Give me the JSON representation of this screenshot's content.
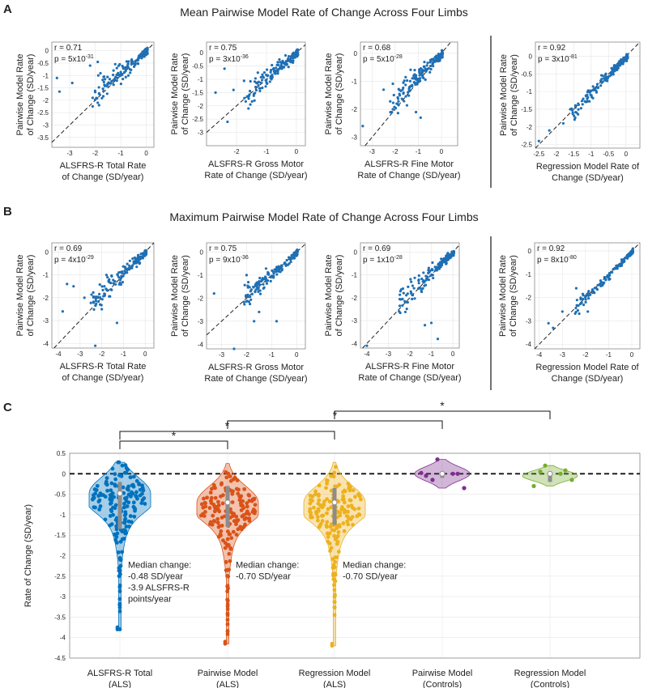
{
  "panel_labels": {
    "a": "A",
    "b": "B",
    "c": "C"
  },
  "titles": {
    "a": "Mean Pairwise Model Rate of Change Across Four Limbs",
    "b": "Maximum Pairwise Model Rate of Change Across Four Limbs"
  },
  "colors": {
    "scatter": "#1f6fb4",
    "als_total": "#0072BD",
    "pairwise_als": "#D95319",
    "regression_als": "#EDB120",
    "pairwise_controls": "#7E2F8E",
    "regression_controls": "#77AC30",
    "median": "#8c8c8c"
  },
  "chart_data": [
    {
      "id": "a1",
      "type": "scatter",
      "row": "a",
      "r": "r = 0.71",
      "p_base": "p = 5x10",
      "p_exp": "-31",
      "xlabel": [
        "ALSFRS-R Total Rate",
        "of Change (SD/year)"
      ],
      "ylabel": [
        "Pairwise Model Rate",
        "of Change (SD/year)"
      ],
      "xlim": [
        -3.7,
        0.3
      ],
      "ylim": [
        -3.9,
        0.35
      ],
      "xticks": [
        -3,
        -2,
        -1,
        0
      ],
      "yticks": [
        0,
        -0.5,
        -1,
        -1.5,
        -2,
        -2.5,
        -3,
        -3.5
      ],
      "slope": 0.85,
      "points_estimated": [
        [
          -3.4,
          -1.65
        ],
        [
          -3.5,
          -1.1
        ],
        [
          -2.9,
          -1.3
        ],
        [
          -2.1,
          -2.25
        ],
        [
          -2.1,
          -1.9
        ],
        [
          -1.9,
          -2.1
        ],
        [
          -2.2,
          -0.6
        ],
        [
          -1.9,
          -0.45
        ]
      ]
    },
    {
      "id": "a2",
      "type": "scatter",
      "row": "a",
      "r": "r = 0.75",
      "p_base": "p = 3x10",
      "p_exp": "-36",
      "xlabel": [
        "ALSFRS-R Gross Motor",
        "Rate of Change (SD/year)"
      ],
      "ylabel": [
        "Pairwise Model Rate",
        "of Change (SD/year)"
      ],
      "xlim": [
        -3.0,
        0.3
      ],
      "ylim": [
        -3.5,
        0.4
      ],
      "xticks": [
        -2,
        -1,
        0
      ],
      "yticks": [
        0,
        -0.5,
        -1,
        -1.5,
        -2,
        -2.5,
        -3
      ],
      "slope": 0.9,
      "points_estimated": [
        [
          -2.7,
          -1.5
        ],
        [
          -2.4,
          -0.6
        ],
        [
          -2.3,
          -2.6
        ],
        [
          -2.1,
          -1.4
        ],
        [
          -1.6,
          -2.1
        ],
        [
          -1.4,
          -1.8
        ]
      ]
    },
    {
      "id": "a3",
      "type": "scatter",
      "row": "a",
      "r": "r = 0.68",
      "p_base": "p = 5x10",
      "p_exp": "-28",
      "xlabel": [
        "ALSFRS-R Fine Motor",
        "Rate of Change (SD/year)"
      ],
      "ylabel": [
        "Pairwise Model Rate",
        "of Change (SD/year)"
      ],
      "xlim": [
        -3.5,
        0.7
      ],
      "ylim": [
        -3.3,
        0.4
      ],
      "xticks": [
        -3,
        -2,
        -1,
        0
      ],
      "yticks": [
        0,
        -1,
        -2,
        -3
      ],
      "slope": 0.8,
      "points_estimated": [
        [
          -3.4,
          -2.6
        ],
        [
          -2.5,
          -1.3
        ],
        [
          -2.1,
          -2.0
        ],
        [
          -1.8,
          -1.5
        ],
        [
          -1.1,
          -2.1
        ],
        [
          -0.9,
          -2.3
        ]
      ]
    },
    {
      "id": "a4",
      "type": "scatter",
      "row": "a",
      "r": "r = 0.92",
      "p_base": "p = 3x10",
      "p_exp": "-81",
      "xlabel": [
        "Regression Model Rate of",
        "Change (SD/year)"
      ],
      "ylabel": [
        "Pairwise Model Rate",
        "of Change (SD/year)"
      ],
      "xlim": [
        -2.6,
        0.4
      ],
      "ylim": [
        -2.6,
        0.4
      ],
      "xticks": [
        -2.5,
        -2,
        -1.5,
        -1,
        -0.5,
        0
      ],
      "yticks": [
        0,
        -0.5,
        -1,
        -1.5,
        -2,
        -2.5
      ],
      "slope": 1.0,
      "points_estimated": [
        [
          -2.5,
          -2.4
        ],
        [
          -2.2,
          -2.1
        ],
        [
          -1.8,
          -1.9
        ],
        [
          -1.6,
          -1.5
        ],
        [
          -1.45,
          -1.45
        ]
      ]
    },
    {
      "id": "b1",
      "type": "scatter",
      "row": "b",
      "r": "r = 0.69",
      "p_base": "p = 4x10",
      "p_exp": "-29",
      "xlabel": [
        "ALSFRS-R Total Rate",
        "of Change (SD/year)"
      ],
      "ylabel": [
        "Pairwise Model Rate",
        "of Change (SD/year)"
      ],
      "xlim": [
        -4.3,
        0.4
      ],
      "ylim": [
        -4.2,
        0.4
      ],
      "xticks": [
        -4,
        -3,
        -2,
        -1,
        0
      ],
      "yticks": [
        0,
        -1,
        -2,
        -3,
        -4
      ],
      "slope": 0.85,
      "points_estimated": [
        [
          -3.8,
          -2.6
        ],
        [
          -3.3,
          -1.5
        ],
        [
          -2.8,
          -2.0
        ],
        [
          -2.3,
          -4.1
        ],
        [
          -2.0,
          -2.5
        ],
        [
          -1.3,
          -3.1
        ],
        [
          -3.6,
          -1.4
        ]
      ]
    },
    {
      "id": "b2",
      "type": "scatter",
      "row": "b",
      "r": "r = 0.75",
      "p_base": "p = 9x10",
      "p_exp": "-36",
      "xlabel": [
        "ALSFRS-R Gross Motor",
        "Rate of Change (SD/year)"
      ],
      "ylabel": [
        "Pairwise Model Rate",
        "of Change (SD/year)"
      ],
      "xlim": [
        -3.6,
        0.35
      ],
      "ylim": [
        -4.2,
        0.4
      ],
      "xticks": [
        -3,
        -2,
        -1,
        0
      ],
      "yticks": [
        0,
        -1,
        -2,
        -3,
        -4
      ],
      "slope": 0.95,
      "points_estimated": [
        [
          -3.3,
          -1.8
        ],
        [
          -2.5,
          -4.2
        ],
        [
          -2.0,
          -1.0
        ],
        [
          -1.7,
          -3.0
        ],
        [
          -1.5,
          -2.6
        ],
        [
          -0.8,
          -3.0
        ]
      ]
    },
    {
      "id": "b3",
      "type": "scatter",
      "row": "b",
      "r": "r = 0.69",
      "p_base": "p = 1x10",
      "p_exp": "-28",
      "xlabel": [
        "ALSFRS-R Fine Motor",
        "Rate of Change (SD/year)"
      ],
      "ylabel": [
        "Pairwise Model Rate",
        "of Change (SD/year)"
      ],
      "xlim": [
        -4.3,
        0.3
      ],
      "ylim": [
        -4.2,
        0.4
      ],
      "xticks": [
        -4,
        -3,
        -2,
        -1,
        0
      ],
      "yticks": [
        0,
        -1,
        -2,
        -3,
        -4
      ],
      "slope": 0.85,
      "points_estimated": [
        [
          -4.0,
          -4.1
        ],
        [
          -2.5,
          -2.6
        ],
        [
          -2.1,
          -2.2
        ],
        [
          -1.6,
          -1.6
        ],
        [
          -1.3,
          -3.2
        ],
        [
          -1.0,
          -3.1
        ],
        [
          -0.7,
          -3.8
        ]
      ]
    },
    {
      "id": "b4",
      "type": "scatter",
      "row": "b",
      "r": "r = 0.92",
      "p_base": "p = 8x10",
      "p_exp": "-80",
      "xlabel": [
        "Regression Model Rate of",
        "Change (SD/year)"
      ],
      "ylabel": [
        "Pairwise Model Rate",
        "of Change (SD/year)"
      ],
      "xlim": [
        -4.2,
        0.35
      ],
      "ylim": [
        -4.2,
        0.35
      ],
      "xticks": [
        -4,
        -3,
        -2,
        -1,
        0
      ],
      "yticks": [
        0,
        -1,
        -2,
        -3,
        -4
      ],
      "slope": 1.0,
      "points_estimated": [
        [
          -3.6,
          -3.1
        ],
        [
          -3.4,
          -3.3
        ],
        [
          -3.0,
          -2.6
        ],
        [
          -2.4,
          -1.6
        ],
        [
          -2.1,
          -1.9
        ],
        [
          -1.9,
          -2.6
        ]
      ]
    },
    {
      "id": "c",
      "type": "violin",
      "ylabel": "Rate of Change (SD/year)",
      "ylim": [
        -4.5,
        0.5
      ],
      "yticks": [
        0.5,
        0,
        -0.5,
        -1,
        -1.5,
        -2,
        -2.5,
        -3,
        -3.5,
        -4,
        -4.5
      ],
      "zero_line": 0,
      "groups": [
        {
          "name": [
            "ALSFRS-R Total",
            "(ALS)"
          ],
          "color_key": "als_total",
          "median": -0.48,
          "q1": -1.35,
          "q3": -0.2,
          "min": -3.8,
          "max": 0.28,
          "annotation": [
            "Median change:",
            "-0.48 SD/year",
            "-3.9 ALSFRS-R",
            "points/year"
          ]
        },
        {
          "name": [
            "Pairwise Model",
            "(ALS)"
          ],
          "color_key": "pairwise_als",
          "median": -0.7,
          "q1": -1.3,
          "q3": -0.3,
          "min": -4.15,
          "max": 0.25,
          "annotation": [
            "Median change:",
            "-0.70 SD/year"
          ]
        },
        {
          "name": [
            "Regression Model",
            "(ALS)"
          ],
          "color_key": "regression_als",
          "median": -0.7,
          "q1": -1.25,
          "q3": -0.35,
          "min": -4.2,
          "max": 0.28,
          "annotation": [
            "Median change:",
            "-0.70 SD/year"
          ]
        },
        {
          "name": [
            "Pairwise Model",
            "(Controls)"
          ],
          "color_key": "pairwise_controls",
          "median": 0.0,
          "q1": -0.1,
          "q3": 0.05,
          "min": -0.35,
          "max": 0.35,
          "points": [
            0.35,
            0.0,
            -0.05,
            -0.35,
            -0.15,
            0.0,
            0.02
          ],
          "annotation": []
        },
        {
          "name": [
            "Regression Model",
            "(Controls)"
          ],
          "color_key": "regression_controls",
          "median": 0.0,
          "q1": -0.2,
          "q3": 0.05,
          "min": -0.3,
          "max": 0.2,
          "points": [
            0.2,
            0.0,
            -0.3,
            -0.15,
            0.05,
            0.08
          ],
          "annotation": []
        }
      ],
      "significance": [
        {
          "from": 0,
          "to": 1,
          "label": "*"
        },
        {
          "from": 0,
          "to": 2,
          "label": "*"
        },
        {
          "from": 1,
          "to": 3,
          "label": "*"
        },
        {
          "from": 2,
          "to": 4,
          "label": "*"
        }
      ]
    }
  ]
}
